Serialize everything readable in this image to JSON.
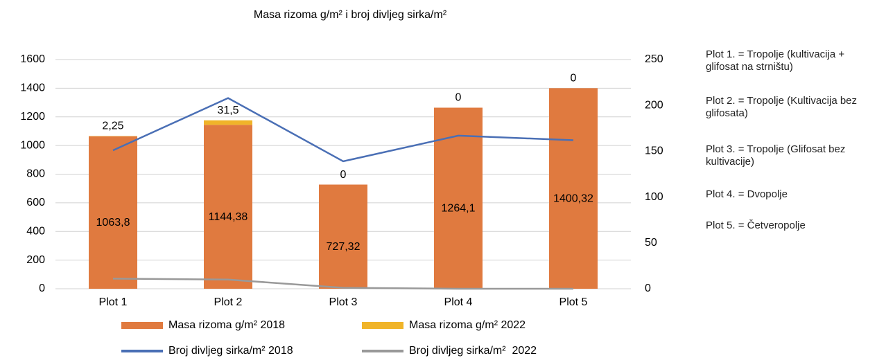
{
  "chart_data": {
    "type": "bar",
    "title": "Masa rizoma g/m² i broj divljeg sirka/m²",
    "categories": [
      "Plot 1",
      "Plot 2",
      "Plot 3",
      "Plot 4",
      "Plot 5"
    ],
    "series": [
      {
        "name": "Masa rizoma g/m² 2018",
        "type": "bar",
        "color": "#e07a3f",
        "values": [
          1063.8,
          1144.38,
          727.32,
          1264.1,
          1400.32
        ],
        "value_labels": [
          "1063,8",
          "1144,38",
          "727,32",
          "1264,1",
          "1400,32"
        ]
      },
      {
        "name": "Masa rizoma g/m² 2022",
        "type": "bar",
        "color": "#f0b429",
        "values": [
          2.25,
          31.5,
          0,
          0,
          0
        ],
        "value_labels": [
          "2,25",
          "31,5",
          "0",
          "0",
          "0"
        ]
      },
      {
        "name": "Broj divljeg sirka/m² 2018",
        "type": "line",
        "axis": "y2",
        "color": "#4a6fb5",
        "values": [
          151,
          208,
          139,
          167,
          162
        ]
      },
      {
        "name": "Broj divljeg sirka/m²  2022",
        "type": "line",
        "axis": "y2",
        "color": "#999999",
        "values": [
          11,
          10,
          1,
          0,
          0
        ]
      }
    ],
    "ylim": [
      0,
      1600
    ],
    "yticks": [
      0,
      200,
      400,
      600,
      800,
      1000,
      1200,
      1400,
      1600
    ],
    "y2lim": [
      0,
      250
    ],
    "y2ticks": [
      0,
      50,
      100,
      150,
      200,
      250
    ],
    "grid": true,
    "stacked": true,
    "legend": "bottom",
    "annotations": [
      "Plot 1. = Tropolje (kultivacija + glifosat na strništu)",
      "Plot 2. = Tropolje (Kultivacija bez glifosata)",
      "Plot 3. = Tropolje (Glifosat bez kultivacije)",
      "Plot 4. = Dvopolje",
      "Plot 5. = Četveropolje"
    ]
  }
}
